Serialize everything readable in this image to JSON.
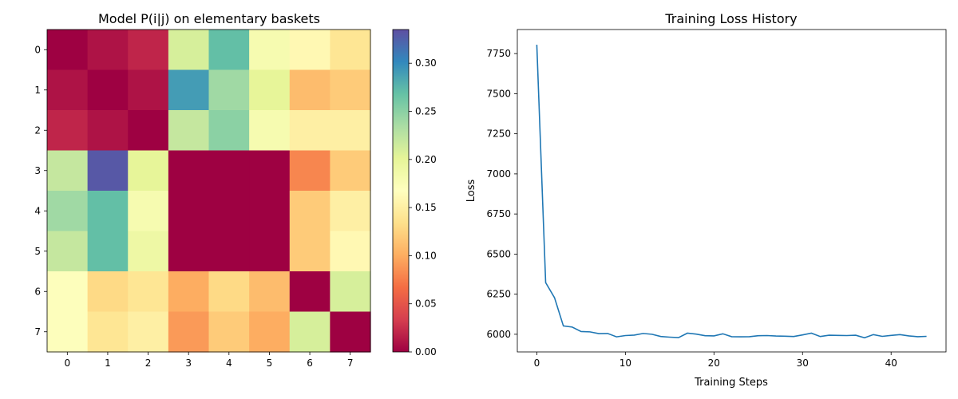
{
  "chart_data": [
    {
      "type": "heatmap",
      "title": "Model P(i|j) on elementary baskets",
      "xlabel": "",
      "ylabel": "",
      "x_ticks": [
        "0",
        "1",
        "2",
        "3",
        "4",
        "5",
        "6",
        "7"
      ],
      "y_ticks": [
        "0",
        "1",
        "2",
        "3",
        "4",
        "5",
        "6",
        "7"
      ],
      "colormap": "Spectral",
      "colorbar": {
        "range": [
          0,
          0.335
        ],
        "ticks": [
          "0.00",
          "0.05",
          "0.10",
          "0.15",
          "0.20",
          "0.25",
          "0.30"
        ]
      },
      "values": [
        [
          0.0,
          0.01,
          0.02,
          0.21,
          0.27,
          0.18,
          0.16,
          0.14
        ],
        [
          0.01,
          0.0,
          0.01,
          0.29,
          0.24,
          0.2,
          0.11,
          0.12
        ],
        [
          0.02,
          0.01,
          0.0,
          0.22,
          0.25,
          0.18,
          0.15,
          0.15
        ],
        [
          0.22,
          0.33,
          0.2,
          0.0,
          0.0,
          0.0,
          0.08,
          0.12
        ],
        [
          0.24,
          0.27,
          0.18,
          0.0,
          0.0,
          0.0,
          0.12,
          0.15
        ],
        [
          0.22,
          0.27,
          0.19,
          0.0,
          0.0,
          0.0,
          0.12,
          0.16
        ],
        [
          0.17,
          0.13,
          0.14,
          0.1,
          0.13,
          0.11,
          0.0,
          0.21
        ],
        [
          0.17,
          0.14,
          0.15,
          0.09,
          0.12,
          0.1,
          0.21,
          0.0
        ]
      ]
    },
    {
      "type": "line",
      "title": "Training Loss History",
      "xlabel": "Training Steps",
      "ylabel": "Loss",
      "xlim": [
        -2.2,
        46.2
      ],
      "ylim": [
        5890,
        7900
      ],
      "x_ticks": [
        0,
        10,
        20,
        30,
        40
      ],
      "y_ticks": [
        6000,
        6250,
        6500,
        6750,
        7000,
        7250,
        7500,
        7750
      ],
      "series": [
        {
          "color": "#1f77b4",
          "x": [
            0,
            1,
            2,
            3,
            4,
            5,
            6,
            7,
            8,
            9,
            10,
            11,
            12,
            13,
            14,
            15,
            16,
            17,
            18,
            19,
            20,
            21,
            22,
            23,
            24,
            25,
            26,
            27,
            28,
            29,
            30,
            31,
            32,
            33,
            34,
            35,
            36,
            37,
            38,
            39,
            40,
            41,
            42,
            43,
            44
          ],
          "values": [
            7805,
            6322,
            6228,
            6052,
            6045,
            6017,
            6015,
            6004,
            6005,
            5984,
            5992,
            5995,
            6005,
            6000,
            5986,
            5982,
            5979,
            6007,
            6001,
            5991,
            5990,
            6003,
            5985,
            5984,
            5985,
            5991,
            5992,
            5989,
            5988,
            5986,
            5996,
            6007,
            5986,
            5994,
            5993,
            5992,
            5994,
            5978,
            5998,
            5987,
            5993,
            5998,
            5990,
            5985,
            5987
          ]
        }
      ]
    }
  ]
}
